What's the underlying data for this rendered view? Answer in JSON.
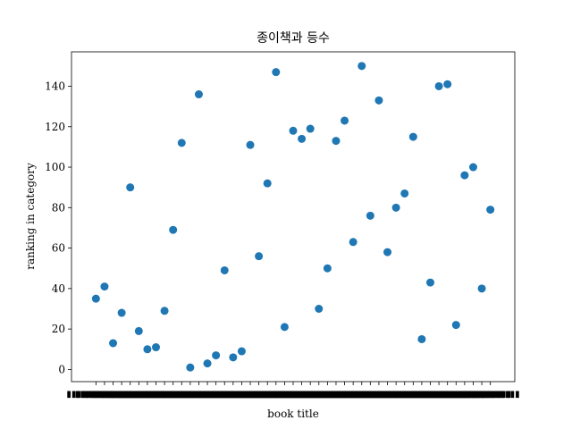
{
  "chart_data": {
    "type": "scatter",
    "title": "종이책과 등수",
    "xlabel": "book title",
    "ylabel": "ranking in category",
    "ylim": [
      -6,
      157
    ],
    "yticks": [
      0,
      20,
      40,
      60,
      80,
      100,
      120,
      140
    ],
    "grid": false,
    "marker_color": "#1f77b4",
    "x_tick_note": "47 overlapping, illegible book-title tick labels",
    "y": [
      35,
      41,
      13,
      28,
      90,
      19,
      10,
      11,
      29,
      69,
      112,
      1,
      136,
      3,
      7,
      49,
      6,
      9,
      111,
      56,
      92,
      147,
      21,
      118,
      114,
      119,
      30,
      50,
      113,
      123,
      63,
      150,
      76,
      133,
      58,
      80,
      87,
      115,
      15,
      43,
      140,
      141,
      22,
      96,
      100,
      40,
      79
    ]
  }
}
